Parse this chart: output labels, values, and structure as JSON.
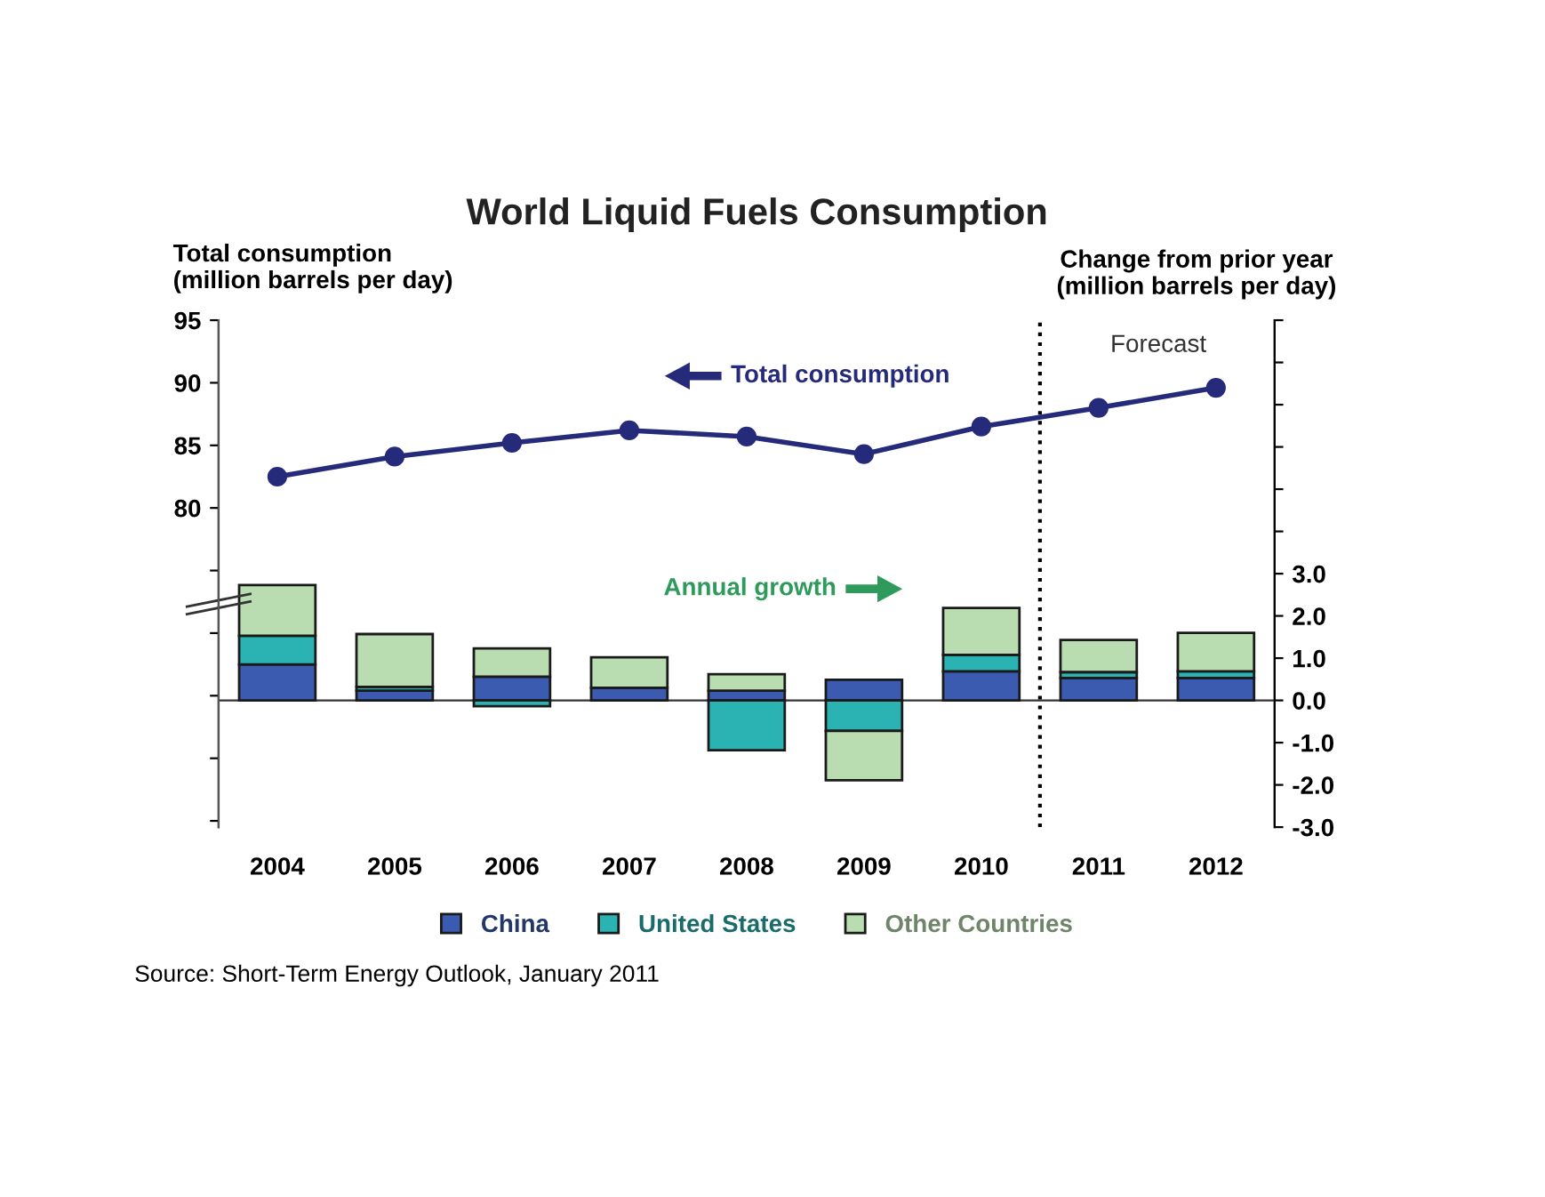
{
  "chart_data": {
    "type": "bar",
    "title": "World Liquid Fuels Consumption",
    "ylabel": "Total consumption\n(million barrels per day)",
    "y2label": "Change from prior year\n(million barrels per day)",
    "x": [
      2004,
      2005,
      2006,
      2007,
      2008,
      2009,
      2010,
      2011,
      2012
    ],
    "xlim": [
      2003.5,
      2012.5
    ],
    "xticks": [
      2004,
      2005,
      2006,
      2007,
      2008,
      2009,
      2010,
      2011,
      2012
    ],
    "ylim": [
      54.5,
      95
    ],
    "yticks": [
      {
        "value": 55,
        "label": null
      },
      {
        "value": 60,
        "label": null
      },
      {
        "value": 65,
        "label": null
      },
      {
        "value": 70,
        "label": null
      },
      {
        "value": 75,
        "label": null
      },
      80,
      85,
      90,
      95
    ],
    "y2lim": [
      -3.0,
      9.0
    ],
    "y2ticks": [
      {
        "value": -3,
        "label": "-3.0"
      },
      {
        "value": -2,
        "label": "-2.0"
      },
      {
        "value": -1,
        "label": "-1.0"
      },
      {
        "value": 0,
        "label": "0.0"
      },
      {
        "value": 1,
        "label": "1.0"
      },
      {
        "value": 2,
        "label": "2.0"
      },
      {
        "value": 3,
        "label": "3.0"
      },
      {
        "value": 4,
        "label": null
      },
      {
        "value": 5,
        "label": null
      },
      {
        "value": 6,
        "label": null
      },
      {
        "value": 7,
        "label": null
      },
      {
        "value": 8,
        "label": null
      },
      {
        "value": 9,
        "label": null
      }
    ],
    "stacked": true,
    "legend": "bottom",
    "grid": false,
    "marker": "circle",
    "line_style": "solid",
    "series": [
      {
        "name": "China",
        "axis": "y2",
        "color": "#3a5bb0",
        "values": [
          0.85,
          0.23,
          0.56,
          0.3,
          0.23,
          0.49,
          0.69,
          0.53,
          0.53
        ]
      },
      {
        "name": "United States",
        "axis": "y2",
        "color": "#2bb3b3",
        "values": [
          0.68,
          0.09,
          -0.14,
          null,
          -1.18,
          -0.72,
          0.39,
          0.14,
          0.16
        ]
      },
      {
        "name": "Other Countries",
        "axis": "y2",
        "color": "#b9ddb0",
        "values": [
          1.2,
          1.25,
          0.67,
          0.72,
          0.39,
          -1.17,
          1.11,
          0.76,
          0.91
        ]
      },
      {
        "type": "line",
        "axis": "y",
        "color": "#262a7a",
        "values": [
          82.5,
          84.1,
          85.2,
          86.2,
          85.7,
          84.3,
          86.5,
          88.0,
          89.6
        ]
      }
    ],
    "ref_lines": [
      {
        "axis": "y2",
        "value": 0,
        "line_style": "solid",
        "color": "#333333"
      },
      {
        "axis": "x",
        "value": 2010.5,
        "label": "Forecast",
        "line_style": "dotted",
        "color": "#000000"
      }
    ],
    "annotations": [
      "Total consumption",
      "Annual growth",
      "Source: Short-Term Energy Outlook, January 2011"
    ]
  }
}
